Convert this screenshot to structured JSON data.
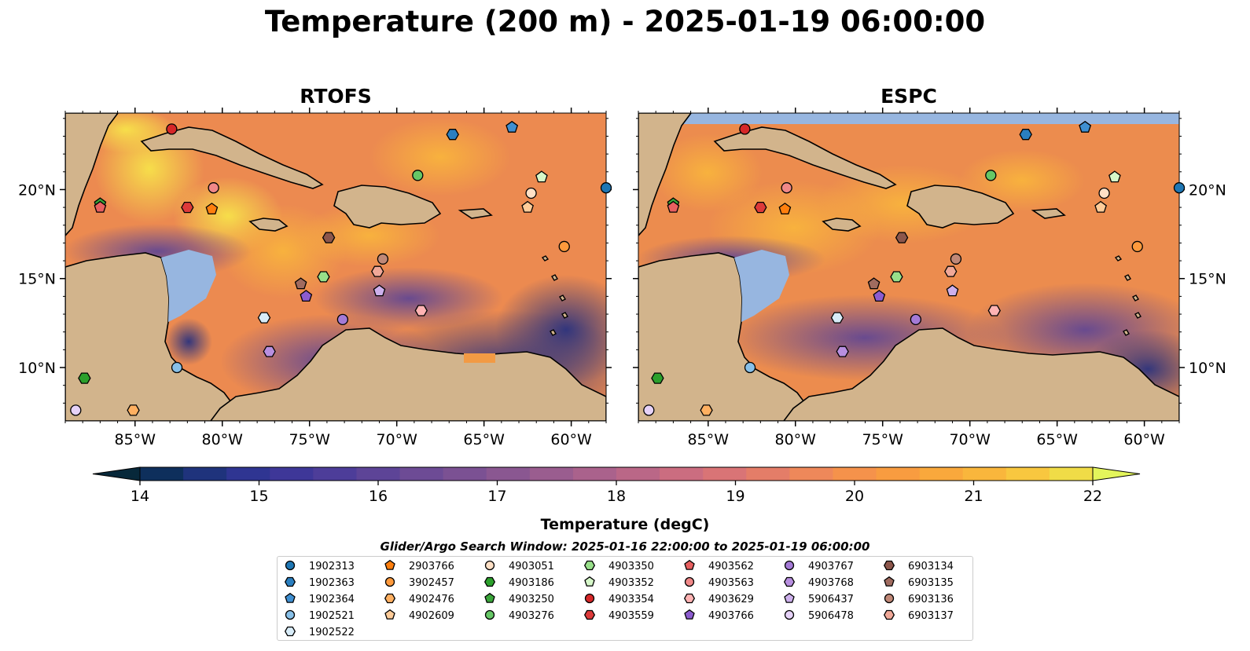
{
  "title": "Temperature (200 m) - 2025-01-19 06:00:00",
  "panels": [
    {
      "title": "RTOFS"
    },
    {
      "title": "ESPC"
    }
  ],
  "axes": {
    "lon_ticks": [
      "85°W",
      "80°W",
      "75°W",
      "70°W",
      "65°W",
      "60°W"
    ],
    "lat_ticks": [
      "20°N",
      "15°N",
      "10°N"
    ],
    "lon_values": [
      -85,
      -80,
      -75,
      -70,
      -65,
      -60
    ],
    "lat_values": [
      20,
      15,
      10
    ]
  },
  "colorbar": {
    "label": "Temperature (degC)",
    "ticks": [
      "14",
      "15",
      "16",
      "17",
      "18",
      "19",
      "20",
      "21",
      "22"
    ],
    "min": 14,
    "max": 22,
    "extend": "both",
    "colors": [
      "#07283a",
      "#0e2f5c",
      "#1f337c",
      "#2f3592",
      "#3e3798",
      "#4d3d99",
      "#5d4497",
      "#6d4b95",
      "#7b5193",
      "#8a5791",
      "#9a5d8f",
      "#aa628c",
      "#ba6787",
      "#cb6d80",
      "#d97476",
      "#e47d68",
      "#ee885a",
      "#f5924b",
      "#f89c40",
      "#f9a83c",
      "#f9b63c",
      "#f8c73f",
      "#f0dc47",
      "#e3f55b"
    ]
  },
  "search_window": "Glider/Argo Search Window: 2025-01-16 22:00:00 to 2025-01-19 06:00:00",
  "legend": {
    "columns": [
      [
        {
          "id": "1902313",
          "color": "#1f77b4",
          "marker": "circle"
        },
        {
          "id": "1902363",
          "color": "#2a7fc0",
          "marker": "hexagon"
        },
        {
          "id": "1902364",
          "color": "#3f8fd1",
          "marker": "pentagon"
        },
        {
          "id": "1902521",
          "color": "#88c0e8",
          "marker": "circle"
        },
        {
          "id": "1902522",
          "color": "#d8ecf8",
          "marker": "hexagon"
        }
      ],
      [
        {
          "id": "2903766",
          "color": "#ff7f0e",
          "marker": "pentagon"
        },
        {
          "id": "3902457",
          "color": "#ff9a3c",
          "marker": "circle"
        },
        {
          "id": "4902476",
          "color": "#ffb061",
          "marker": "hexagon"
        },
        {
          "id": "4902609",
          "color": "#ffcc99",
          "marker": "pentagon"
        }
      ],
      [
        {
          "id": "4903051",
          "color": "#ffe0c6",
          "marker": "circle"
        },
        {
          "id": "4903186",
          "color": "#2ca02c",
          "marker": "hexagon"
        },
        {
          "id": "4903250",
          "color": "#3aa53a",
          "marker": "pentagon"
        },
        {
          "id": "4903276",
          "color": "#66c766",
          "marker": "circle"
        }
      ],
      [
        {
          "id": "4903350",
          "color": "#98df8a",
          "marker": "hexagon"
        },
        {
          "id": "4903352",
          "color": "#d6f7c9",
          "marker": "pentagon"
        },
        {
          "id": "4903354",
          "color": "#d62728",
          "marker": "circle"
        },
        {
          "id": "4903559",
          "color": "#dd3a3a",
          "marker": "hexagon"
        }
      ],
      [
        {
          "id": "4903562",
          "color": "#e86060",
          "marker": "pentagon"
        },
        {
          "id": "4903563",
          "color": "#f08888",
          "marker": "circle"
        },
        {
          "id": "4903629",
          "color": "#ffb3b3",
          "marker": "hexagon"
        },
        {
          "id": "4903766",
          "color": "#8c5ccf",
          "marker": "pentagon"
        }
      ],
      [
        {
          "id": "4903767",
          "color": "#a47ad6",
          "marker": "circle"
        },
        {
          "id": "4903768",
          "color": "#b88fe0",
          "marker": "hexagon"
        },
        {
          "id": "5906437",
          "color": "#cdb0ec",
          "marker": "pentagon"
        },
        {
          "id": "5906478",
          "color": "#e6d2f8",
          "marker": "circle"
        }
      ],
      [
        {
          "id": "6903134",
          "color": "#8c564b",
          "marker": "hexagon"
        },
        {
          "id": "6903135",
          "color": "#a06b5f",
          "marker": "pentagon"
        },
        {
          "id": "6903136",
          "color": "#c08877",
          "marker": "circle"
        },
        {
          "id": "6903137",
          "color": "#f0a898",
          "marker": "hexagon"
        }
      ]
    ]
  },
  "floats": [
    {
      "id": "1902313",
      "lon": -58.0,
      "lat": 20.1
    },
    {
      "id": "1902363",
      "lon": -66.8,
      "lat": 23.1
    },
    {
      "id": "1902364",
      "lon": -63.4,
      "lat": 23.5
    },
    {
      "id": "1902521",
      "lon": -82.6,
      "lat": 10.0
    },
    {
      "id": "1902522",
      "lon": -77.6,
      "lat": 12.8
    },
    {
      "id": "2903766",
      "lon": -80.6,
      "lat": 18.9
    },
    {
      "id": "3902457",
      "lon": -60.4,
      "lat": 16.8
    },
    {
      "id": "4902476",
      "lon": -85.1,
      "lat": 7.6
    },
    {
      "id": "4902609",
      "lon": -62.5,
      "lat": 19.0
    },
    {
      "id": "4903051",
      "lon": -62.3,
      "lat": 19.8
    },
    {
      "id": "4903186",
      "lon": -87.9,
      "lat": 9.4
    },
    {
      "id": "4903250",
      "lon": -87.0,
      "lat": 19.2
    },
    {
      "id": "4903276",
      "lon": -68.8,
      "lat": 20.8
    },
    {
      "id": "4903350",
      "lon": -74.2,
      "lat": 15.1
    },
    {
      "id": "4903352",
      "lon": -61.7,
      "lat": 20.7
    },
    {
      "id": "4903354",
      "lon": -82.9,
      "lat": 23.4
    },
    {
      "id": "4903559",
      "lon": -82.0,
      "lat": 19.0
    },
    {
      "id": "4903562",
      "lon": -87.0,
      "lat": 19.0
    },
    {
      "id": "4903563",
      "lon": -80.5,
      "lat": 20.1
    },
    {
      "id": "4903629",
      "lon": -68.6,
      "lat": 13.2
    },
    {
      "id": "4903766",
      "lon": -75.2,
      "lat": 14.0
    },
    {
      "id": "4903767",
      "lon": -73.1,
      "lat": 12.7
    },
    {
      "id": "4903768",
      "lon": -77.3,
      "lat": 10.9
    },
    {
      "id": "5906437",
      "lon": -71.0,
      "lat": 14.3
    },
    {
      "id": "5906478",
      "lon": -88.4,
      "lat": 7.6
    },
    {
      "id": "6903134",
      "lon": -73.9,
      "lat": 17.3
    },
    {
      "id": "6903135",
      "lon": -75.5,
      "lat": 14.7
    },
    {
      "id": "6903136",
      "lon": -70.8,
      "lat": 16.1
    },
    {
      "id": "6903137",
      "lon": -71.1,
      "lat": 15.4
    }
  ]
}
